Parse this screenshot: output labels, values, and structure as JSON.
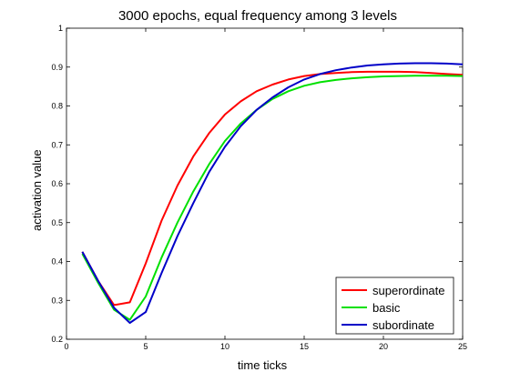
{
  "chart_data": {
    "type": "line",
    "title": "3000 epochs, equal frequency among 3 levels",
    "xlabel": "time ticks",
    "ylabel": "activation value",
    "xlim": [
      0,
      25
    ],
    "ylim": [
      0.2,
      1
    ],
    "xticks": [
      0,
      5,
      10,
      15,
      20,
      25
    ],
    "yticks": [
      0.2,
      0.3,
      0.4,
      0.5,
      0.6,
      0.7,
      0.8,
      0.9,
      1
    ],
    "ytick_labels": [
      "0.2",
      "0.3",
      "0.4",
      "0.5",
      "0.6",
      "0.7",
      "0.8",
      "0.9",
      "1"
    ],
    "grid": false,
    "legend_position": "bottom-right",
    "x": [
      1,
      2,
      3,
      4,
      5,
      6,
      7,
      8,
      9,
      10,
      11,
      12,
      13,
      14,
      15,
      16,
      17,
      18,
      19,
      20,
      21,
      22,
      23,
      24,
      25
    ],
    "series": [
      {
        "name": "superordinate",
        "color": "#ff0000",
        "values": [
          0.425,
          0.35,
          0.288,
          0.295,
          0.395,
          0.505,
          0.595,
          0.67,
          0.73,
          0.778,
          0.812,
          0.838,
          0.855,
          0.868,
          0.877,
          0.882,
          0.885,
          0.887,
          0.888,
          0.888,
          0.888,
          0.887,
          0.885,
          0.882,
          0.88
        ]
      },
      {
        "name": "basic",
        "color": "#00e000",
        "values": [
          0.42,
          0.345,
          0.276,
          0.25,
          0.31,
          0.41,
          0.5,
          0.58,
          0.65,
          0.71,
          0.755,
          0.79,
          0.818,
          0.838,
          0.852,
          0.861,
          0.867,
          0.871,
          0.874,
          0.876,
          0.877,
          0.878,
          0.878,
          0.878,
          0.877
        ]
      },
      {
        "name": "subordinate",
        "color": "#0000c8",
        "values": [
          0.425,
          0.35,
          0.281,
          0.242,
          0.27,
          0.37,
          0.465,
          0.55,
          0.63,
          0.695,
          0.748,
          0.79,
          0.822,
          0.848,
          0.868,
          0.882,
          0.892,
          0.899,
          0.904,
          0.907,
          0.909,
          0.91,
          0.91,
          0.909,
          0.907
        ]
      }
    ]
  }
}
